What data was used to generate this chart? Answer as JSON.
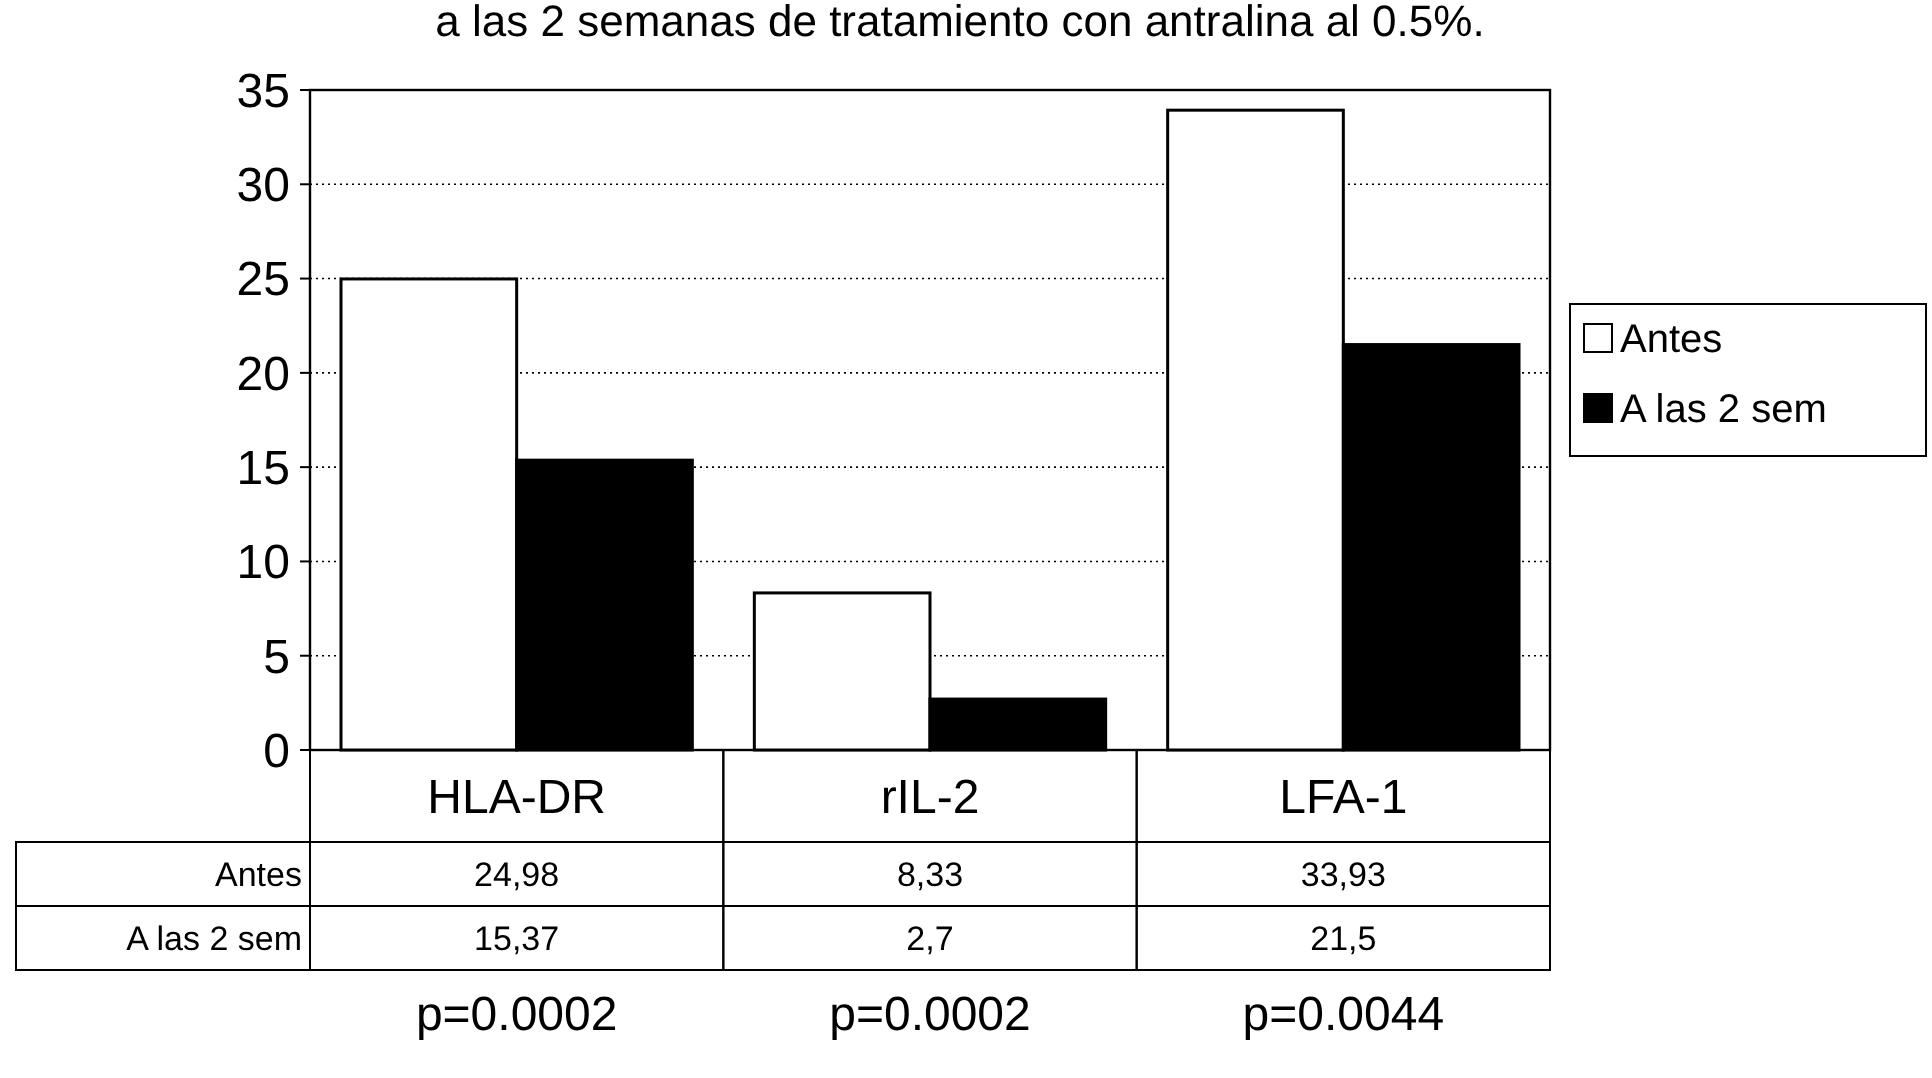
{
  "chart_data": {
    "type": "bar",
    "title": "a las 2 semanas de tratamiento con antralina al 0.5%.",
    "categories": [
      "HLA-DR",
      "rIL-2",
      "LFA-1"
    ],
    "series": [
      {
        "name": "Antes",
        "color": "#ffffff",
        "values": [
          24.98,
          8.33,
          33.93
        ],
        "value_labels": [
          "24,98",
          "8,33",
          "33,93"
        ]
      },
      {
        "name": "A las 2 sem",
        "color": "#000000",
        "values": [
          15.37,
          2.7,
          21.5
        ],
        "value_labels": [
          "15,37",
          "2,7",
          "21,5"
        ]
      }
    ],
    "ylim": [
      0,
      35
    ],
    "yticks": [
      0,
      5,
      10,
      15,
      20,
      25,
      30,
      35
    ],
    "grid": "y",
    "legend": "right",
    "annotations": [
      "p=0.0002",
      "p=0.0002",
      "p=0.0044"
    ]
  }
}
